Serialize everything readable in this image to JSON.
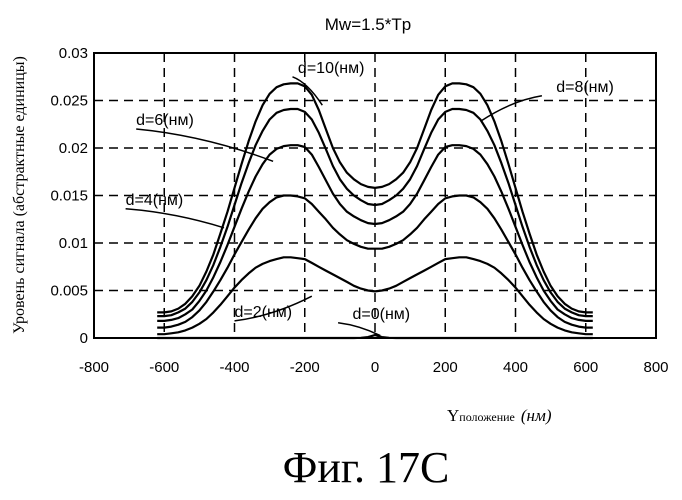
{
  "chart_data": {
    "type": "line",
    "title": "Mw=1.5*Tp",
    "xlabel_main": "Y",
    "xlabel_sub": "положение",
    "xlabel_unit": "(нм)",
    "ylabel": "Уровень сигнала (абстрактные единицы)",
    "xlim": [
      -800,
      800
    ],
    "ylim": [
      0,
      0.03
    ],
    "xticks": [
      -800,
      -600,
      -400,
      -200,
      0,
      200,
      400,
      600,
      800
    ],
    "yticks": [
      0,
      0.005,
      0.01,
      0.015,
      0.02,
      0.025,
      0.03
    ],
    "xtick_labels": [
      "-800",
      "-600",
      "-400",
      "-200",
      "0",
      "200",
      "400",
      "600",
      "800"
    ],
    "ytick_labels": [
      "0",
      "0.005",
      "0.01",
      "0.015",
      "0.02",
      "0.025",
      "0.03"
    ],
    "grid": true,
    "x": [
      -620,
      -600,
      -580,
      -560,
      -540,
      -520,
      -500,
      -480,
      -460,
      -440,
      -420,
      -400,
      -380,
      -360,
      -340,
      -320,
      -300,
      -280,
      -260,
      -240,
      -220,
      -200,
      -180,
      -160,
      -140,
      -120,
      -100,
      -80,
      -60,
      -40,
      -20,
      0,
      20,
      40,
      60,
      80,
      100,
      120,
      140,
      160,
      180,
      200,
      220,
      240,
      260,
      280,
      300,
      320,
      340,
      360,
      380,
      400,
      420,
      440,
      460,
      480,
      500,
      520,
      540,
      560,
      580,
      600,
      620
    ],
    "series": [
      {
        "name": "d=0(нм)",
        "values": [
          0,
          0,
          0,
          0,
          0,
          0,
          0,
          0,
          0,
          0,
          0,
          0,
          0,
          0,
          0,
          0,
          0,
          0,
          0,
          0,
          0,
          0,
          0,
          0,
          0,
          0,
          0,
          0,
          0,
          2e-05,
          0.0001,
          0.0003,
          0.0001,
          2e-05,
          0,
          0,
          0,
          0,
          0,
          0,
          0,
          0,
          0,
          0,
          0,
          0,
          0,
          0,
          0,
          0,
          0,
          0,
          0,
          0,
          0,
          0,
          0,
          0,
          0,
          0,
          0,
          0,
          0
        ]
      },
      {
        "name": "d=2(нм)",
        "values": [
          0.0004,
          0.0004,
          0.0005,
          0.0006,
          0.0008,
          0.0011,
          0.0015,
          0.002,
          0.0027,
          0.0035,
          0.0044,
          0.0053,
          0.0061,
          0.0068,
          0.0074,
          0.0078,
          0.0081,
          0.0083,
          0.0085,
          0.0085,
          0.0084,
          0.0083,
          0.0079,
          0.0075,
          0.0071,
          0.0067,
          0.0063,
          0.0059,
          0.0055,
          0.0052,
          0.005,
          0.0049,
          0.005,
          0.0052,
          0.0055,
          0.0059,
          0.0063,
          0.0067,
          0.0071,
          0.0075,
          0.0079,
          0.0083,
          0.0084,
          0.0085,
          0.0085,
          0.0083,
          0.0081,
          0.0078,
          0.0074,
          0.0068,
          0.0061,
          0.0053,
          0.0044,
          0.0035,
          0.0027,
          0.002,
          0.0015,
          0.0011,
          0.0008,
          0.0006,
          0.0005,
          0.0004,
          0.0004
        ]
      },
      {
        "name": "d=4(нм)",
        "values": [
          0.0011,
          0.0011,
          0.0012,
          0.0014,
          0.0017,
          0.0022,
          0.0029,
          0.0038,
          0.0049,
          0.0061,
          0.0074,
          0.0088,
          0.0101,
          0.0114,
          0.0126,
          0.0136,
          0.0143,
          0.0148,
          0.015,
          0.015,
          0.0149,
          0.0147,
          0.0141,
          0.0133,
          0.0125,
          0.0116,
          0.0109,
          0.0103,
          0.0099,
          0.0096,
          0.0094,
          0.0094,
          0.0094,
          0.0096,
          0.0099,
          0.0103,
          0.0109,
          0.0116,
          0.0125,
          0.0133,
          0.0141,
          0.0147,
          0.0149,
          0.015,
          0.015,
          0.0148,
          0.0143,
          0.0136,
          0.0126,
          0.0114,
          0.0101,
          0.0088,
          0.0074,
          0.0061,
          0.0049,
          0.0038,
          0.0029,
          0.0022,
          0.0017,
          0.0014,
          0.0012,
          0.0011,
          0.0011
        ]
      },
      {
        "name": "d=6(нм)",
        "values": [
          0.0018,
          0.0018,
          0.0019,
          0.0021,
          0.0025,
          0.003,
          0.0039,
          0.005,
          0.0064,
          0.008,
          0.0098,
          0.0117,
          0.0136,
          0.0154,
          0.017,
          0.0183,
          0.0193,
          0.0199,
          0.0202,
          0.0203,
          0.0203,
          0.0201,
          0.0193,
          0.018,
          0.0166,
          0.0152,
          0.0141,
          0.0133,
          0.0128,
          0.0124,
          0.0121,
          0.012,
          0.0121,
          0.0124,
          0.0128,
          0.0133,
          0.0141,
          0.0152,
          0.0166,
          0.018,
          0.0193,
          0.0201,
          0.0203,
          0.0203,
          0.0202,
          0.0199,
          0.0193,
          0.0183,
          0.017,
          0.0154,
          0.0136,
          0.0117,
          0.0098,
          0.008,
          0.0064,
          0.005,
          0.0039,
          0.003,
          0.0025,
          0.0021,
          0.0019,
          0.0018,
          0.0018
        ]
      },
      {
        "name": "d=8(нм)",
        "values": [
          0.0023,
          0.0023,
          0.0024,
          0.0027,
          0.0031,
          0.0038,
          0.0048,
          0.0061,
          0.0077,
          0.0096,
          0.0117,
          0.014,
          0.0163,
          0.0184,
          0.0203,
          0.0218,
          0.023,
          0.0237,
          0.024,
          0.0241,
          0.0241,
          0.0238,
          0.023,
          0.0216,
          0.0199,
          0.0181,
          0.0167,
          0.0157,
          0.015,
          0.0145,
          0.0141,
          0.014,
          0.0141,
          0.0145,
          0.015,
          0.0157,
          0.0167,
          0.0181,
          0.0199,
          0.0216,
          0.023,
          0.0238,
          0.0241,
          0.0241,
          0.024,
          0.0237,
          0.023,
          0.0218,
          0.0203,
          0.0184,
          0.0163,
          0.014,
          0.0117,
          0.0096,
          0.0077,
          0.0061,
          0.0048,
          0.0038,
          0.0031,
          0.0027,
          0.0024,
          0.0023,
          0.0023
        ]
      },
      {
        "name": "d=10(нм)",
        "values": [
          0.0027,
          0.0027,
          0.0028,
          0.0031,
          0.0036,
          0.0044,
          0.0055,
          0.007,
          0.0088,
          0.011,
          0.0133,
          0.0158,
          0.0183,
          0.0207,
          0.0228,
          0.0245,
          0.0257,
          0.0264,
          0.0267,
          0.0268,
          0.0268,
          0.0265,
          0.0256,
          0.024,
          0.022,
          0.02,
          0.0185,
          0.0174,
          0.0167,
          0.0162,
          0.0159,
          0.0158,
          0.0159,
          0.0162,
          0.0167,
          0.0174,
          0.0185,
          0.02,
          0.022,
          0.024,
          0.0256,
          0.0265,
          0.0268,
          0.0268,
          0.0267,
          0.0264,
          0.0257,
          0.0245,
          0.0228,
          0.0207,
          0.0183,
          0.0158,
          0.0133,
          0.011,
          0.0088,
          0.007,
          0.0055,
          0.0044,
          0.0036,
          0.0031,
          0.0028,
          0.0027,
          0.0027
        ]
      }
    ],
    "annotations": [
      {
        "text": "d=10(нм)",
        "x": -30,
        "y": 0.0275,
        "point_x": -150,
        "point_y": 0.0245
      },
      {
        "text": "d=8(нм)",
        "x": 680,
        "y": 0.0255,
        "point_x": 300,
        "point_y": 0.0228
      },
      {
        "text": "d=6(нм)",
        "x": -680,
        "y": 0.022,
        "point_x": -290,
        "point_y": 0.0186
      },
      {
        "text": "d=4(нм)",
        "x": -710,
        "y": 0.0136,
        "point_x": -430,
        "point_y": 0.0116
      },
      {
        "text": "d=2(нм)",
        "x": -400,
        "y": 0.0018,
        "point_x": -180,
        "point_y": 0.0044
      },
      {
        "text": "d=0(нм)",
        "x": 100,
        "y": 0.0016,
        "point_x": 15,
        "point_y": 0.00025
      }
    ]
  },
  "caption": "Фиг. 17C"
}
